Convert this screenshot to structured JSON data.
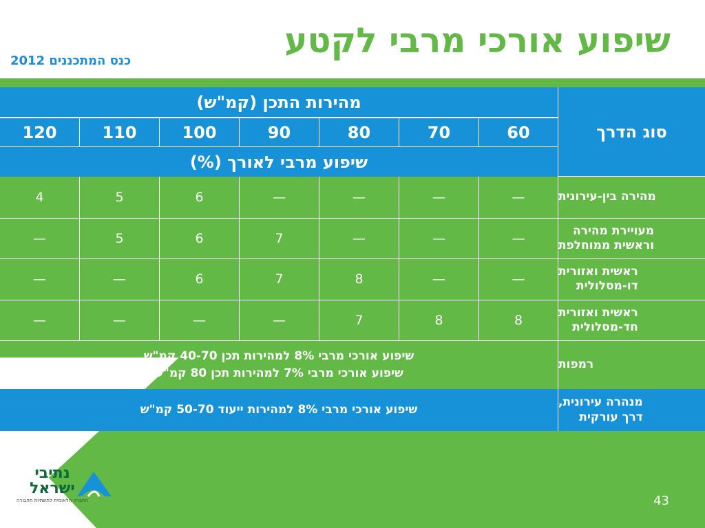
{
  "slide": {
    "title": "שיפוע אורכי מרבי לקטע",
    "subtitle": "כנס המתכננים 2012",
    "page_number": "43"
  },
  "table": {
    "road_type_header": "סוג הדרך",
    "speed_header": "מהירות התכן (קמ\"ש)",
    "slope_header": "שיפוע מרבי לאורך (%)",
    "speeds": [
      "120",
      "110",
      "100",
      "90",
      "80",
      "70",
      "60"
    ],
    "rows": [
      {
        "label": "מהירה בין-עירונית",
        "values": [
          "4",
          "5",
          "6",
          "—",
          "—",
          "—",
          "—"
        ]
      },
      {
        "label": "מעויירת מהירה\nוראשית ממוחלפת",
        "values": [
          "—",
          "5",
          "6",
          "7",
          "—",
          "—",
          "—"
        ]
      },
      {
        "label": "ראשית ואזורית\nדו-מסלולית",
        "values": [
          "—",
          "—",
          "6",
          "7",
          "8",
          "—",
          "—"
        ]
      },
      {
        "label": "ראשית ואזורית\nחד-מסלולית",
        "values": [
          "—",
          "—",
          "—",
          "—",
          "7",
          "8",
          "8"
        ]
      }
    ],
    "ramps": {
      "label": "רמפות",
      "line1": "שיפוע אורכי מרבי 8% למהירות תכן 40-70 קמ\"ש",
      "line2": "שיפוע אורכי מרבי 7% למהירות תכן 80 קמ\"ש"
    },
    "urban": {
      "label": "מנהרה עירונית,\nדרך עורקית",
      "note": "שיפוע אורכי מרבי 8% למהירות ייעוד 50-70 קמ\"ש"
    }
  },
  "logo": {
    "text": "נתיבי ישראל",
    "tagline": "החברה הלאומית לתשתיות תחבורה"
  },
  "colors": {
    "green": "#62b946",
    "blue": "#1792d9",
    "title_green": "#62b946",
    "subtitle_blue": "#1a8fd8"
  }
}
